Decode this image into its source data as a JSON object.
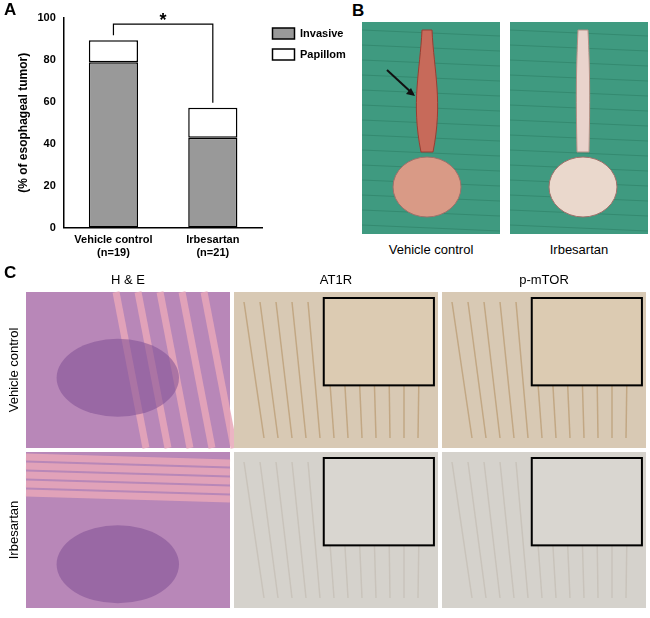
{
  "chart_data": {
    "type": "bar",
    "panel_label": "A",
    "y_label": "(% of esophageal tumor)",
    "categories": [
      [
        "Vehicle control",
        "(n=19)"
      ],
      [
        "Irbesartan",
        "(n=21)"
      ]
    ],
    "series": [
      {
        "name": "Invasive SCC",
        "color": "#999999",
        "values": [
          78.9,
          42.9
        ]
      },
      {
        "name": "Papilloma",
        "color": "#ffffff",
        "values": [
          10.5,
          14.3
        ]
      }
    ],
    "stacked": true,
    "ylim": [
      0,
      100
    ],
    "yticks": [
      0,
      20,
      40,
      60,
      80,
      100
    ],
    "grid": false,
    "legend": "top-right",
    "annotation": "*"
  },
  "panel_b": {
    "label": "B",
    "images": [
      "Vehicle control",
      "Irbesartan"
    ]
  },
  "panel_c": {
    "label": "C",
    "columns": [
      "H & E",
      "AT1R",
      "p-mTOR"
    ],
    "rows": [
      "Vehicle control",
      "Irbesartan"
    ]
  }
}
